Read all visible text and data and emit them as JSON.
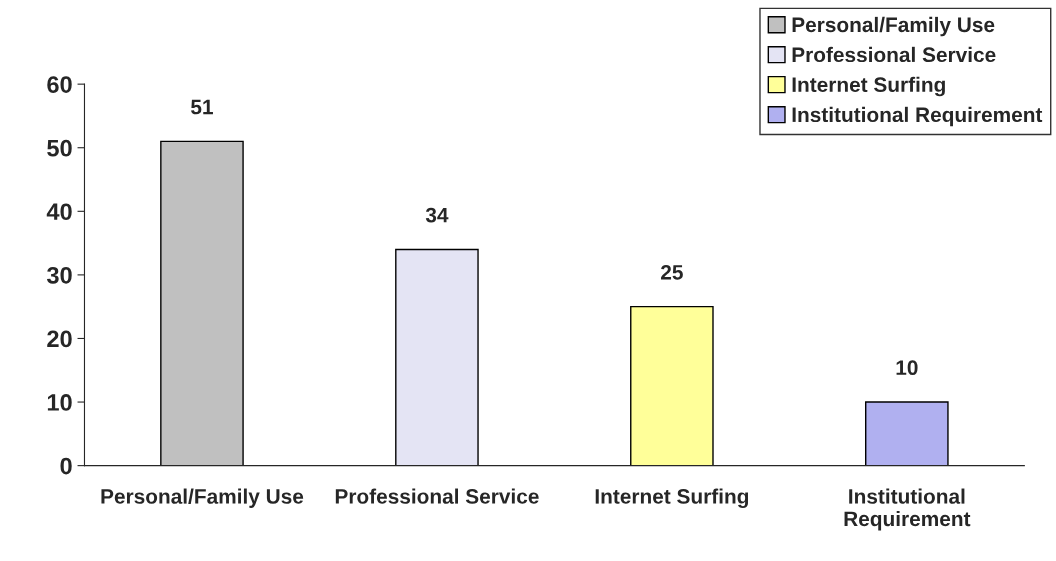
{
  "chart_data": {
    "type": "bar",
    "categories": [
      "Personal/Family Use",
      "Professional Service",
      "Internet Surfing",
      "Institutional Requirement"
    ],
    "series": [
      {
        "name": "Personal/Family Use",
        "color": "#c0c0c0",
        "values": [
          51,
          null,
          null,
          null
        ]
      },
      {
        "name": "Professional Service",
        "color": "#e4e4f4",
        "values": [
          null,
          34,
          null,
          null
        ]
      },
      {
        "name": "Internet Surfing",
        "color": "#ffff99",
        "values": [
          null,
          null,
          25,
          null
        ]
      },
      {
        "name": "Institutional Requirement",
        "color": "#b0b0f0",
        "values": [
          null,
          null,
          null,
          10
        ]
      }
    ],
    "ylim": [
      0,
      60
    ],
    "yticks": [
      0,
      10,
      20,
      30,
      40,
      50,
      60
    ],
    "grid": false,
    "legend": "top right",
    "data_labels": true
  }
}
